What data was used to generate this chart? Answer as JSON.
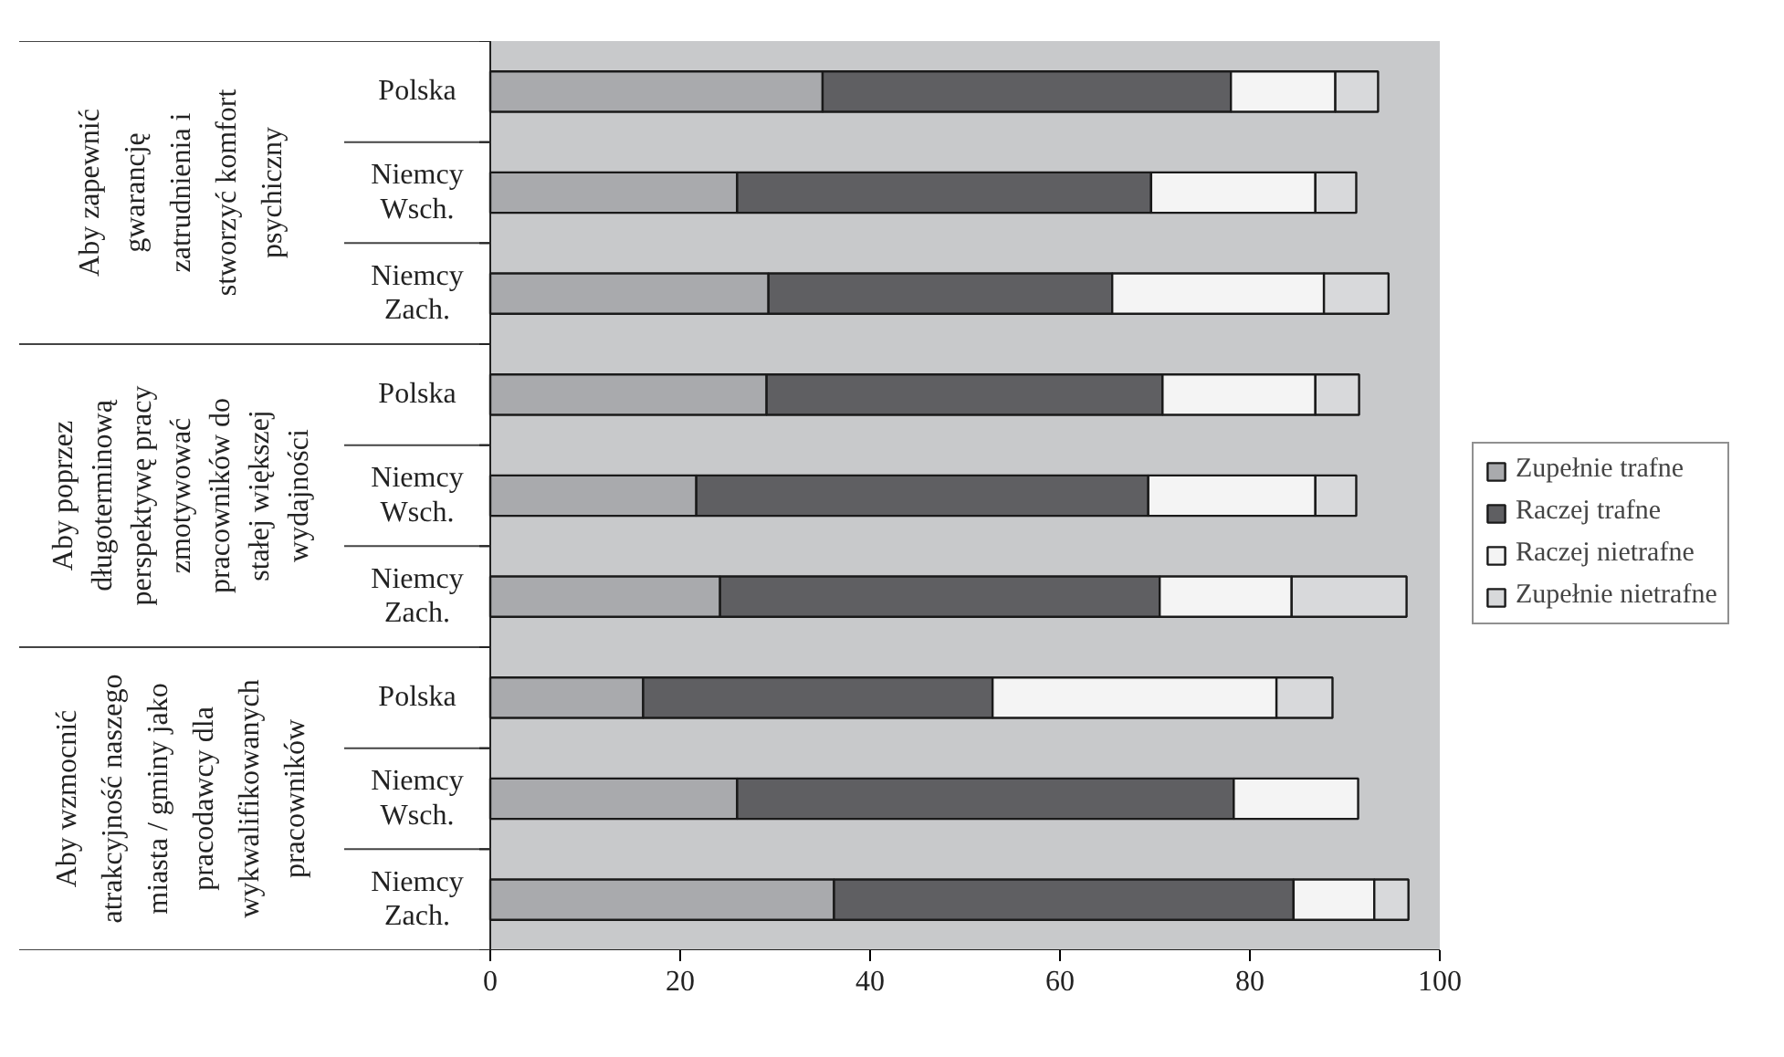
{
  "chart_data": {
    "type": "bar",
    "orientation": "horizontal",
    "stacked": true,
    "categories": [
      "Polska",
      "Niemcy Wsch.",
      "Niemcy Zach.",
      "Polska",
      "Niemcy Wsch.",
      "Niemcy Zach.",
      "Polska",
      "Niemcy Wsch.",
      "Niemcy Zach."
    ],
    "series": [
      {
        "name": "Zupełnie trafne",
        "color": "#a9aaad",
        "values": [
          35,
          26,
          29.3,
          29.1,
          21.7,
          24.2,
          16.1,
          26,
          36.2
        ]
      },
      {
        "name": "Raczej trafne",
        "color": "#5f5f62",
        "values": [
          43,
          43.6,
          36.2,
          41.7,
          47.6,
          46.3,
          36.8,
          52.3,
          48.4
        ]
      },
      {
        "name": "Raczej nietrafne",
        "color": "#f4f4f4",
        "values": [
          11,
          17.3,
          22.3,
          16.1,
          17.6,
          13.9,
          29.9,
          13.1,
          8.5
        ]
      },
      {
        "name": "Zupełnie nietrafne",
        "color": "#d8d9db",
        "values": [
          4.5,
          4.3,
          6.8,
          4.6,
          4.3,
          12.1,
          5.9,
          null,
          3.6
        ]
      }
    ],
    "annotations": [
      "Aby zapewnić\ngwarancję\nzatrudnienia i\nstworzyć komfort\npsychiczny",
      "Aby poprzez\ndługoterminową\nperspektywę pracy\nzmotywować\npracowników do\nstałej większej\nwydajności",
      "Aby wzmocnić\natrakcyjność naszego\nmiasta / gminy jako\npracodawcy dla\nwykwalifikowanych\npracowników"
    ],
    "xlim": [
      0,
      100
    ],
    "xticks": [
      0,
      20,
      40,
      60,
      80,
      100
    ],
    "grid": false,
    "legend": "right"
  }
}
